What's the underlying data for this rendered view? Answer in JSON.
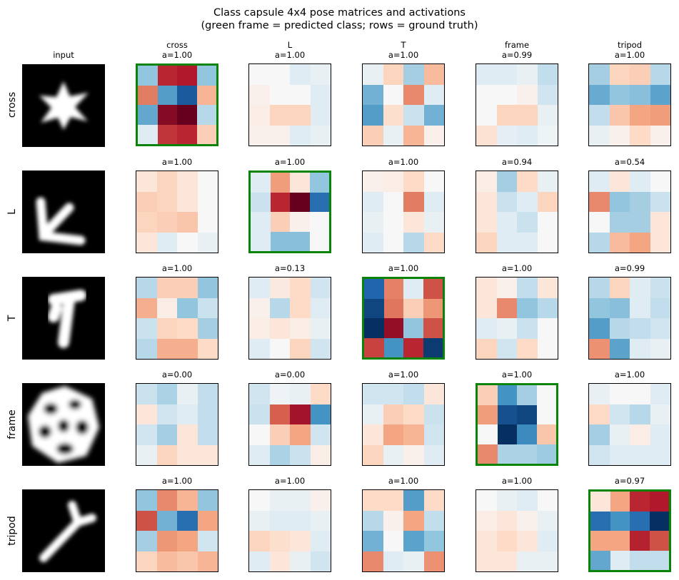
{
  "title_line1": "Class capsule 4x4 pose matrices and activations",
  "title_line2": "(green frame = predicted class; rows = ground truth)",
  "input_label": "input",
  "colors": {
    "predicted_frame": "#098409"
  },
  "chart_data": {
    "type": "heatmap",
    "colormap": "RdBu_r (symmetric)",
    "grid": false,
    "rows": [
      "cross",
      "L",
      "T",
      "frame",
      "tripod"
    ],
    "columns": [
      "cross",
      "L",
      "T",
      "frame",
      "tripod"
    ],
    "activations": [
      [
        "a=1.00",
        "a=1.00",
        "a=1.00",
        "a=0.99",
        "a=1.00"
      ],
      [
        "a=1.00",
        "a=1.00",
        "a=1.00",
        "a=0.94",
        "a=0.54"
      ],
      [
        "a=1.00",
        "a=0.13",
        "a=1.00",
        "a=1.00",
        "a=0.99"
      ],
      [
        "a=0.00",
        "a=0.00",
        "a=1.00",
        "a=1.00",
        "a=1.00"
      ],
      [
        "a=1.00",
        "a=1.00",
        "a=1.00",
        "a=1.00",
        "a=0.97"
      ]
    ],
    "predicted": [
      0,
      1,
      2,
      3,
      4
    ],
    "matrices": [
      [
        [
          [
            -0.25,
            0.7,
            0.75,
            -0.25
          ],
          [
            0.4,
            -0.45,
            -0.8,
            0.2
          ],
          [
            -0.4,
            0.9,
            1.0,
            -0.15
          ],
          [
            -0.05,
            0.65,
            0.7,
            0.12
          ]
        ],
        [
          [
            0.0,
            0.0,
            -0.05,
            -0.03
          ],
          [
            0.02,
            0.0,
            0.0,
            -0.05
          ],
          [
            0.03,
            0.1,
            0.1,
            -0.05
          ],
          [
            0.02,
            0.02,
            -0.05,
            -0.03
          ]
        ],
        [
          [
            -0.03,
            0.1,
            -0.2,
            0.18
          ],
          [
            -0.35,
            0.0,
            0.35,
            -0.05
          ],
          [
            -0.45,
            0.07,
            -0.1,
            -0.35
          ],
          [
            0.12,
            -0.03,
            0.2,
            0.02
          ]
        ],
        [
          [
            -0.05,
            -0.05,
            -0.03,
            -0.12
          ],
          [
            0.0,
            0.0,
            0.02,
            -0.08
          ],
          [
            0.0,
            0.1,
            0.1,
            -0.03
          ],
          [
            0.06,
            -0.04,
            -0.05,
            -0.02
          ]
        ],
        [
          [
            -0.2,
            0.1,
            0.12,
            -0.15
          ],
          [
            -0.38,
            -0.25,
            -0.28,
            -0.42
          ],
          [
            -0.12,
            0.15,
            0.25,
            0.28
          ],
          [
            -0.03,
            0.02,
            0.08,
            0.02
          ]
        ]
      ],
      [
        [
          [
            0.05,
            0.1,
            0.05,
            0.0
          ],
          [
            0.12,
            0.1,
            0.05,
            0.0
          ],
          [
            0.1,
            0.12,
            0.15,
            0.0
          ],
          [
            0.05,
            -0.05,
            0.0,
            -0.03
          ]
        ],
        [
          [
            -0.05,
            0.28,
            0.05,
            -0.25
          ],
          [
            -0.1,
            0.7,
            1.0,
            -0.7
          ],
          [
            -0.05,
            0.12,
            0.02,
            0.0
          ],
          [
            -0.05,
            -0.28,
            -0.28,
            0.0
          ]
        ],
        [
          [
            0.02,
            0.03,
            0.08,
            0.0
          ],
          [
            -0.05,
            0.0,
            0.4,
            -0.05
          ],
          [
            -0.03,
            0.0,
            0.05,
            -0.03
          ],
          [
            -0.05,
            0.0,
            -0.15,
            0.08
          ]
        ],
        [
          [
            0.03,
            -0.2,
            0.08,
            -0.03
          ],
          [
            0.05,
            -0.1,
            -0.05,
            0.1
          ],
          [
            0.05,
            -0.05,
            -0.1,
            0.0
          ],
          [
            0.1,
            -0.05,
            -0.05,
            0.0
          ]
        ],
        [
          [
            -0.05,
            0.05,
            -0.05,
            0.0
          ],
          [
            0.35,
            -0.25,
            -0.2,
            -0.1
          ],
          [
            0.0,
            -0.2,
            -0.2,
            0.05
          ],
          [
            -0.15,
            0.18,
            0.25,
            0.05
          ]
        ]
      ],
      [
        [
          [
            -0.15,
            0.12,
            0.12,
            -0.25
          ],
          [
            0.22,
            0.03,
            -0.25,
            -0.1
          ],
          [
            -0.1,
            0.1,
            0.08,
            -0.2
          ],
          [
            -0.15,
            0.22,
            0.22,
            0.08
          ]
        ],
        [
          [
            -0.05,
            0.04,
            0.08,
            -0.08
          ],
          [
            0.02,
            -0.15,
            0.08,
            -0.05
          ],
          [
            0.03,
            0.05,
            0.03,
            -0.03
          ],
          [
            -0.05,
            0.0,
            0.1,
            -0.08
          ]
        ],
        [
          [
            -0.75,
            0.38,
            -0.05,
            0.55
          ],
          [
            -0.9,
            0.42,
            0.12,
            0.3
          ],
          [
            -1.0,
            0.85,
            -0.25,
            0.55
          ],
          [
            0.6,
            -0.5,
            0.7,
            -0.95
          ]
        ],
        [
          [
            0.05,
            0.02,
            -0.12,
            0.05
          ],
          [
            0.05,
            0.35,
            -0.25,
            -0.15
          ],
          [
            -0.05,
            -0.03,
            -0.1,
            0.0
          ],
          [
            0.1,
            -0.08,
            0.08,
            0.0
          ]
        ],
        [
          [
            -0.15,
            0.1,
            -0.05,
            -0.1
          ],
          [
            -0.25,
            -0.28,
            -0.05,
            -0.12
          ],
          [
            -0.45,
            -0.15,
            -0.12,
            -0.08
          ],
          [
            0.32,
            -0.42,
            -0.05,
            -0.03
          ]
        ]
      ],
      [
        [
          [
            -0.1,
            -0.18,
            -0.03,
            -0.12
          ],
          [
            0.05,
            -0.08,
            -0.05,
            -0.12
          ],
          [
            -0.08,
            -0.2,
            0.05,
            -0.12
          ],
          [
            -0.03,
            0.1,
            0.05,
            0.05
          ]
        ],
        [
          [
            -0.08,
            -0.02,
            -0.03,
            0.08
          ],
          [
            -0.1,
            0.5,
            0.8,
            -0.5
          ],
          [
            0.0,
            0.12,
            0.25,
            -0.08
          ],
          [
            -0.05,
            -0.18,
            -0.1,
            0.03
          ]
        ],
        [
          [
            -0.08,
            -0.08,
            -0.12,
            0.05
          ],
          [
            -0.03,
            0.12,
            0.08,
            -0.1
          ],
          [
            0.05,
            0.25,
            0.2,
            -0.08
          ],
          [
            0.1,
            -0.03,
            0.02,
            -0.05
          ]
        ],
        [
          [
            0.12,
            -0.5,
            -0.2,
            0.0
          ],
          [
            0.28,
            -0.85,
            -0.9,
            0.0
          ],
          [
            0.0,
            -1.0,
            -0.55,
            0.15
          ],
          [
            0.35,
            -0.18,
            -0.18,
            -0.22
          ]
        ],
        [
          [
            -0.03,
            0.0,
            0.0,
            -0.05
          ],
          [
            0.08,
            -0.08,
            -0.15,
            -0.03
          ],
          [
            -0.2,
            -0.03,
            0.03,
            -0.05
          ],
          [
            -0.08,
            -0.05,
            -0.05,
            -0.05
          ]
        ]
      ],
      [
        [
          [
            -0.25,
            0.35,
            0.2,
            -0.25
          ],
          [
            0.55,
            -0.35,
            -0.7,
            0.25
          ],
          [
            -0.2,
            0.3,
            0.25,
            -0.08
          ],
          [
            0.1,
            0.18,
            0.15,
            0.2
          ]
        ],
        [
          [
            0.0,
            -0.03,
            -0.03,
            0.02
          ],
          [
            -0.03,
            -0.05,
            -0.05,
            -0.03
          ],
          [
            0.1,
            0.07,
            0.05,
            -0.05
          ],
          [
            -0.05,
            0.05,
            -0.03,
            -0.08
          ]
        ],
        [
          [
            0.08,
            0.08,
            -0.45,
            0.08
          ],
          [
            -0.15,
            0.02,
            0.25,
            -0.12
          ],
          [
            -0.35,
            0.0,
            -0.42,
            -0.25
          ],
          [
            0.35,
            -0.05,
            -0.03,
            0.32
          ]
        ],
        [
          [
            0.0,
            -0.03,
            -0.05,
            0.0
          ],
          [
            0.03,
            0.05,
            0.02,
            -0.03
          ],
          [
            0.05,
            0.08,
            0.05,
            -0.05
          ],
          [
            0.05,
            0.05,
            -0.03,
            -0.03
          ]
        ],
        [
          [
            0.05,
            0.25,
            0.7,
            0.75
          ],
          [
            -0.7,
            -0.5,
            -0.7,
            -1.0
          ],
          [
            0.25,
            0.25,
            0.72,
            0.55
          ],
          [
            -0.4,
            -0.05,
            -0.12,
            -0.12
          ]
        ]
      ]
    ]
  }
}
